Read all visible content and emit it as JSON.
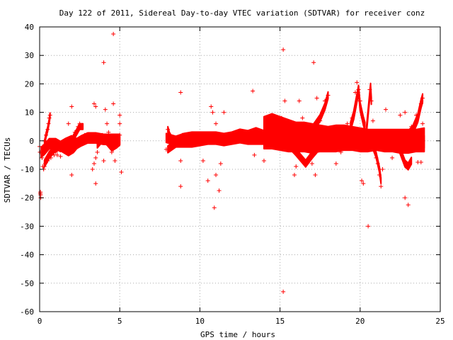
{
  "chart_data": {
    "type": "scatter",
    "title": "Day 122 of 2011, Sidereal Day-to-day VTEC variation (SDTVAR) for receiver conz",
    "xlabel": "GPS time / hours",
    "ylabel": "SDTVAR / TECUs",
    "xlim": [
      0,
      25
    ],
    "ylim": [
      -60,
      40
    ],
    "x_ticks": [
      0,
      5,
      10,
      15,
      20,
      25
    ],
    "y_ticks": [
      40,
      30,
      20,
      10,
      0,
      -10,
      -20,
      -30,
      -40,
      -50,
      -60
    ],
    "x_tick_labels": [
      "0",
      "5",
      "10",
      "15",
      "20",
      "25"
    ],
    "y_tick_labels": [
      "40",
      "30",
      "20",
      "10",
      "0",
      "-10",
      "-20",
      "-30",
      "-40",
      "-50",
      "-60"
    ],
    "grid": true,
    "marker": "+",
    "series": [
      {
        "color": "#ff0000",
        "points": [
          [
            0.0,
            -2
          ],
          [
            0.02,
            -4
          ],
          [
            0.05,
            -18
          ],
          [
            0.06,
            -19
          ],
          [
            0.07,
            -20
          ],
          [
            0.04,
            -18.5
          ],
          [
            0.1,
            -4
          ],
          [
            0.15,
            -6
          ],
          [
            0.2,
            -9
          ],
          [
            0.25,
            -10
          ],
          [
            0.3,
            -9
          ],
          [
            0.35,
            -8
          ],
          [
            0.2,
            -2
          ],
          [
            0.3,
            0
          ],
          [
            0.4,
            2
          ],
          [
            0.5,
            4
          ],
          [
            0.55,
            6
          ],
          [
            0.6,
            8
          ],
          [
            0.65,
            9
          ],
          [
            0.2,
            -3
          ],
          [
            0.3,
            -2
          ],
          [
            0.4,
            -1
          ],
          [
            0.6,
            -2
          ],
          [
            0.8,
            -3
          ],
          [
            1.0,
            -4
          ],
          [
            1.2,
            -3
          ],
          [
            0.5,
            -7
          ],
          [
            0.7,
            -6
          ],
          [
            0.9,
            -5
          ],
          [
            1.1,
            -5
          ],
          [
            1.3,
            -5.5
          ],
          [
            1.4,
            -2
          ],
          [
            1.6,
            -1
          ],
          [
            1.8,
            0
          ],
          [
            2.0,
            1
          ],
          [
            2.2,
            3
          ],
          [
            2.4,
            5
          ],
          [
            2.5,
            6
          ],
          [
            1.5,
            -3
          ],
          [
            1.7,
            -4
          ],
          [
            1.9,
            -4
          ],
          [
            2.1,
            -3
          ],
          [
            2.3,
            -1
          ],
          [
            2.6,
            0
          ],
          [
            2.8,
            2
          ],
          [
            2.0,
            12
          ],
          [
            2.0,
            -12
          ],
          [
            1.8,
            6
          ],
          [
            2.6,
            1
          ],
          [
            2.8,
            0
          ],
          [
            3.0,
            1
          ],
          [
            3.2,
            2
          ],
          [
            3.4,
            0
          ],
          [
            3.3,
            -10
          ],
          [
            3.4,
            -8
          ],
          [
            3.5,
            -6
          ],
          [
            3.6,
            -4
          ],
          [
            3.5,
            -15
          ],
          [
            3.4,
            13
          ],
          [
            3.5,
            12
          ],
          [
            3.6,
            1
          ],
          [
            3.8,
            0
          ],
          [
            4.0,
            1
          ],
          [
            4.0,
            27.5
          ],
          [
            4.0,
            -7
          ],
          [
            4.1,
            11
          ],
          [
            4.2,
            6
          ],
          [
            4.3,
            3
          ],
          [
            4.4,
            -2
          ],
          [
            4.5,
            -4
          ],
          [
            4.6,
            -3
          ],
          [
            4.7,
            0
          ],
          [
            4.6,
            37.5
          ],
          [
            4.6,
            13
          ],
          [
            4.7,
            -7
          ],
          [
            4.8,
            -2
          ],
          [
            4.9,
            0
          ],
          [
            5.0,
            2
          ],
          [
            5.0,
            9
          ],
          [
            5.1,
            -11
          ],
          [
            5.0,
            6
          ],
          [
            7.9,
            -3
          ],
          [
            8.0,
            4
          ],
          [
            8.1,
            2
          ],
          [
            8.2,
            -1
          ],
          [
            8.3,
            -2
          ],
          [
            8.4,
            0
          ],
          [
            8.5,
            1
          ],
          [
            8.8,
            17
          ],
          [
            8.8,
            -7
          ],
          [
            8.8,
            -16
          ],
          [
            8.9,
            2
          ],
          [
            9.0,
            0
          ],
          [
            9.5,
            -1
          ],
          [
            10.0,
            0
          ],
          [
            10.2,
            -7
          ],
          [
            10.5,
            -14
          ],
          [
            10.7,
            12
          ],
          [
            10.8,
            10
          ],
          [
            10.9,
            -23.5
          ],
          [
            11.0,
            -12
          ],
          [
            11.0,
            6
          ],
          [
            11.2,
            -17.5
          ],
          [
            11.3,
            -8
          ],
          [
            11.5,
            10
          ],
          [
            11.5,
            1
          ],
          [
            12.0,
            2
          ],
          [
            12.5,
            2.5
          ],
          [
            13.0,
            2
          ],
          [
            13.3,
            17.5
          ],
          [
            13.4,
            -5
          ],
          [
            13.5,
            3
          ],
          [
            13.8,
            2
          ],
          [
            14.0,
            -7
          ],
          [
            14.2,
            0
          ],
          [
            14.5,
            2
          ],
          [
            14.7,
            3
          ],
          [
            15.0,
            0.5
          ],
          [
            15.1,
            8
          ],
          [
            15.2,
            32
          ],
          [
            15.3,
            14
          ],
          [
            15.2,
            -53
          ],
          [
            15.4,
            -1
          ],
          [
            15.5,
            2
          ],
          [
            15.8,
            0
          ],
          [
            15.9,
            -12
          ],
          [
            16.0,
            -9
          ],
          [
            16.2,
            14
          ],
          [
            16.4,
            8
          ],
          [
            16.6,
            1
          ],
          [
            16.8,
            -3
          ],
          [
            17.0,
            -8
          ],
          [
            17.1,
            27.5
          ],
          [
            17.2,
            -12
          ],
          [
            17.3,
            15
          ],
          [
            17.5,
            7
          ],
          [
            17.8,
            14
          ],
          [
            18.0,
            16
          ],
          [
            18.2,
            4
          ],
          [
            18.5,
            -8
          ],
          [
            18.8,
            -4
          ],
          [
            19.0,
            2
          ],
          [
            19.2,
            6
          ],
          [
            19.5,
            8
          ],
          [
            19.7,
            17
          ],
          [
            19.8,
            20.5
          ],
          [
            19.9,
            18
          ],
          [
            20.0,
            14
          ],
          [
            20.1,
            -14
          ],
          [
            20.2,
            -15
          ],
          [
            20.5,
            -30
          ],
          [
            20.6,
            18
          ],
          [
            20.7,
            14
          ],
          [
            20.8,
            7
          ],
          [
            21.0,
            -6
          ],
          [
            21.1,
            -8
          ],
          [
            21.2,
            -12
          ],
          [
            21.3,
            -16
          ],
          [
            21.4,
            -10
          ],
          [
            21.6,
            11
          ],
          [
            22.0,
            -6
          ],
          [
            22.2,
            -2
          ],
          [
            22.5,
            9
          ],
          [
            22.8,
            10
          ],
          [
            22.8,
            -20
          ],
          [
            23.0,
            -22.5
          ],
          [
            23.2,
            5
          ],
          [
            23.5,
            9
          ],
          [
            23.8,
            13
          ],
          [
            23.9,
            15
          ],
          [
            23.6,
            -7.5
          ],
          [
            23.8,
            -7.5
          ],
          [
            23.9,
            6
          ]
        ]
      }
    ]
  }
}
